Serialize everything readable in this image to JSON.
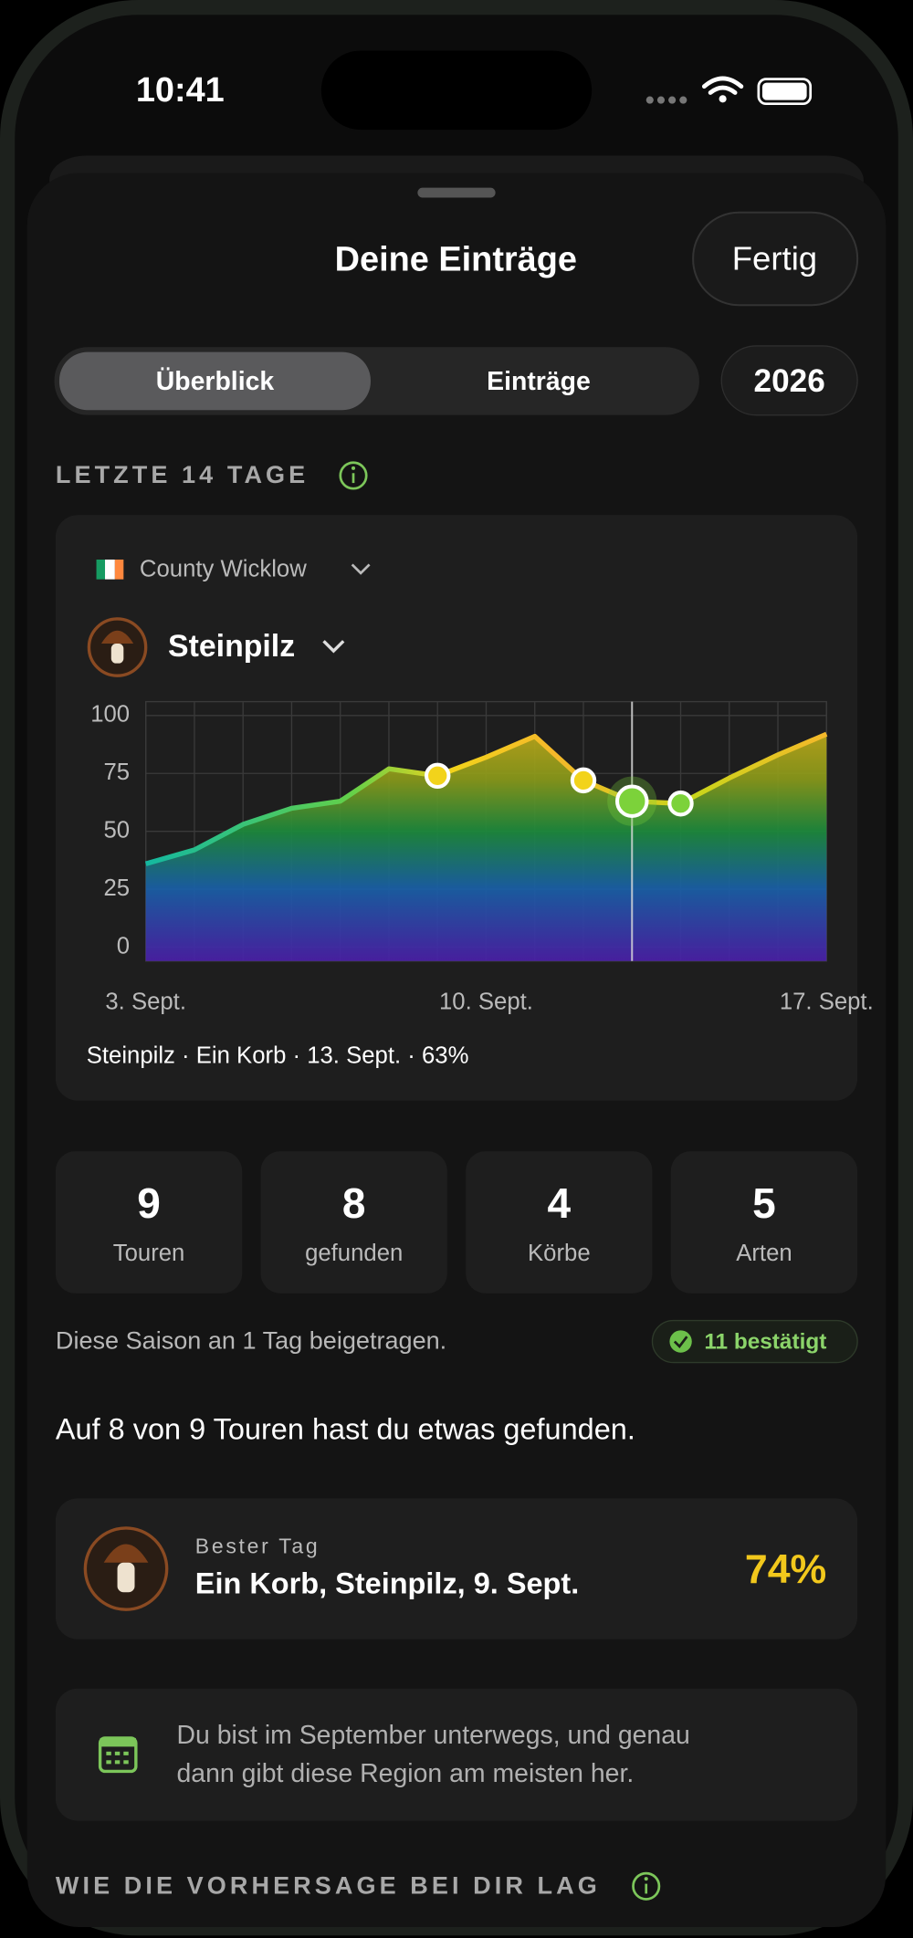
{
  "status_bar": {
    "time": "10:41"
  },
  "header": {
    "title": "Deine Einträge",
    "done": "Fertig"
  },
  "tabs": [
    "Überblick",
    "Einträge"
  ],
  "year": "2026",
  "section_recent": "LETZTE 14 TAGE",
  "region": "County Wicklow",
  "species": "Steinpilz",
  "chart_data": {
    "type": "area",
    "categories": [
      "3. Sept.",
      null,
      null,
      null,
      null,
      null,
      null,
      "10. Sept.",
      null,
      null,
      null,
      null,
      null,
      null,
      "17. Sept."
    ],
    "values": [
      36,
      42,
      53,
      60,
      63,
      77,
      74,
      82,
      91,
      72,
      63,
      62,
      73,
      83,
      92
    ],
    "ylim": [
      -6,
      106
    ],
    "yticks": [
      100,
      75,
      50,
      25,
      0
    ],
    "grid": true,
    "markers": [
      6,
      9,
      10,
      11
    ],
    "selected": 10
  },
  "chart_caption": "Steinpilz · Ein Korb · 13. Sept. · 63%",
  "stats": [
    {
      "value": 9,
      "label": "Touren"
    },
    {
      "value": 8,
      "label": "gefunden"
    },
    {
      "value": 4,
      "label": "Körbe"
    },
    {
      "value": 5,
      "label": "Arten"
    }
  ],
  "season_note": "Diese Saison an 1 Tag beigetragen.",
  "confirmed": "11 bestätigt",
  "summary": "Auf 8 von 9 Touren hast du etwas gefunden.",
  "best_day": {
    "label": "Bester Tag",
    "text": "Ein Korb, Steinpilz, 9. Sept.",
    "percent": "74%"
  },
  "tip": [
    "Du bist im September unterwegs, und genau",
    "dann gibt diese Region am meisten her."
  ],
  "section_forecast": "WIE DIE VORHERSAGE BEI DIR LAG"
}
